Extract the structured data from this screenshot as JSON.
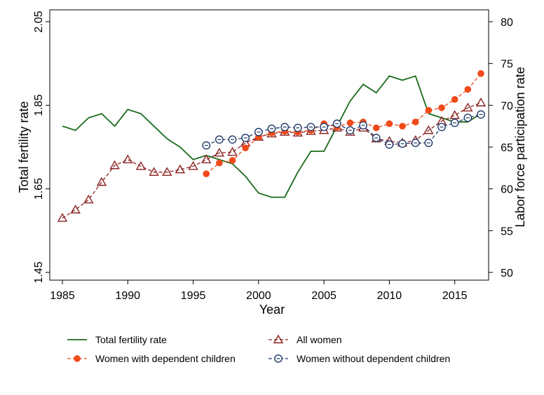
{
  "chart_data": {
    "type": "line",
    "title": "",
    "xlabel": "Year",
    "ylabel_left": "Total fertility rate",
    "ylabel_right": "Labor force participation rate",
    "xlim": [
      1985,
      2017
    ],
    "ylim_left": [
      1.45,
      2.05
    ],
    "ylim_right": [
      50,
      80
    ],
    "x_ticks": [
      "1985",
      "1990",
      "1995",
      "2000",
      "2005",
      "2010",
      "2015"
    ],
    "y_left_ticks": [
      "1.45",
      "1.65",
      "1.85",
      "2.05"
    ],
    "y_right_ticks": [
      "50",
      "55",
      "60",
      "65",
      "70",
      "75",
      "80"
    ],
    "grid": false,
    "legend_position": "bottom",
    "series": [
      {
        "name": "Total fertility rate",
        "axis": "left",
        "color": "#1a6b1a",
        "marker": "none",
        "dash": "solid",
        "x": [
          1985,
          1986,
          1987,
          1988,
          1989,
          1990,
          1991,
          1992,
          1993,
          1994,
          1995,
          1996,
          1997,
          1998,
          1999,
          2000,
          2001,
          2002,
          2003,
          2004,
          2005,
          2006,
          2007,
          2008,
          2009,
          2010,
          2011,
          2012,
          2013,
          2014,
          2015,
          2016,
          2017
        ],
        "values": [
          1.8,
          1.79,
          1.82,
          1.83,
          1.8,
          1.84,
          1.83,
          1.8,
          1.77,
          1.75,
          1.72,
          1.73,
          1.72,
          1.71,
          1.68,
          1.64,
          1.63,
          1.63,
          1.69,
          1.74,
          1.74,
          1.8,
          1.86,
          1.9,
          1.88,
          1.92,
          1.91,
          1.92,
          1.83,
          1.82,
          1.81,
          1.81,
          1.83
        ]
      },
      {
        "name": "All women",
        "axis": "right",
        "color": "#8b2323",
        "marker": "triangle",
        "dash": "dashed",
        "x": [
          1985,
          1986,
          1987,
          1988,
          1989,
          1990,
          1991,
          1992,
          1993,
          1994,
          1995,
          1996,
          1997,
          1998,
          1999,
          2000,
          2001,
          2002,
          2003,
          2004,
          2005,
          2006,
          2007,
          2008,
          2009,
          2010,
          2011,
          2012,
          2013,
          2014,
          2015,
          2016,
          2017
        ],
        "values": [
          56.5,
          57.5,
          58.7,
          60.8,
          62.8,
          63.5,
          62.7,
          62.0,
          62.0,
          62.3,
          62.7,
          63.5,
          64.3,
          64.4,
          65.5,
          66.2,
          66.6,
          66.8,
          66.7,
          66.9,
          67.0,
          67.3,
          66.8,
          67.3,
          66.0,
          65.7,
          65.5,
          65.8,
          67.0,
          68.1,
          68.8,
          69.7,
          70.3
        ]
      },
      {
        "name": "Women with dependent children",
        "axis": "right",
        "color": "#f04a1a",
        "marker": "dot",
        "dash": "dashed",
        "x": [
          1996,
          1997,
          1998,
          1999,
          2000,
          2001,
          2002,
          2003,
          2004,
          2005,
          2006,
          2007,
          2008,
          2009,
          2010,
          2011,
          2012,
          2013,
          2014,
          2015,
          2016,
          2017
        ],
        "values": [
          61.8,
          63.1,
          63.4,
          64.9,
          66.2,
          66.7,
          66.9,
          66.8,
          67.0,
          67.8,
          67.4,
          67.9,
          68.0,
          67.3,
          67.8,
          67.5,
          68.0,
          69.4,
          69.7,
          70.7,
          71.9,
          73.8
        ]
      },
      {
        "name": "Women without dependent children",
        "axis": "right",
        "color": "#1f3a6b",
        "marker": "circle",
        "dash": "dashed",
        "x": [
          1996,
          1997,
          1998,
          1999,
          2000,
          2001,
          2002,
          2003,
          2004,
          2005,
          2006,
          2007,
          2008,
          2009,
          2010,
          2011,
          2012,
          2013,
          2014,
          2015,
          2016,
          2017
        ],
        "values": [
          65.2,
          65.9,
          65.9,
          66.1,
          66.8,
          67.2,
          67.4,
          67.3,
          67.4,
          67.4,
          67.8,
          67.0,
          67.6,
          66.1,
          65.3,
          65.4,
          65.5,
          65.5,
          67.4,
          67.9,
          68.5,
          68.9
        ]
      }
    ]
  }
}
